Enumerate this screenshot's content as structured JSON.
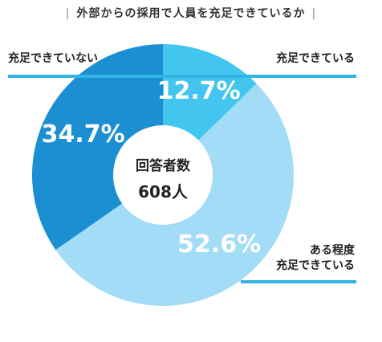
{
  "title": "外部からの採用で人員を充足できているか",
  "colors": {
    "title_text": "#333333",
    "label_text": "#222222",
    "leader_line": "#32b4e6",
    "center_circle": "#ffffff"
  },
  "center": {
    "line1": "回答者数",
    "line2": "608人"
  },
  "chart_data": {
    "type": "pie",
    "donut": true,
    "categories": [
      "充足できている",
      "ある程度充足できている",
      "充足できていない"
    ],
    "values": [
      12.7,
      52.6,
      34.7
    ],
    "value_labels": [
      "12.7%",
      "52.6%",
      "34.7%"
    ],
    "legend_labels": [
      [
        "充足できている"
      ],
      [
        "ある程度",
        "充足できている"
      ],
      [
        "充足できていない"
      ]
    ],
    "colors": [
      "#42c6f0",
      "#a3dcf7",
      "#1b8fd2"
    ],
    "value_label_colors": [
      "#ffffff",
      "#ffffff",
      "#ffffff"
    ],
    "start_angle_deg": 0,
    "direction": "clockwise"
  }
}
